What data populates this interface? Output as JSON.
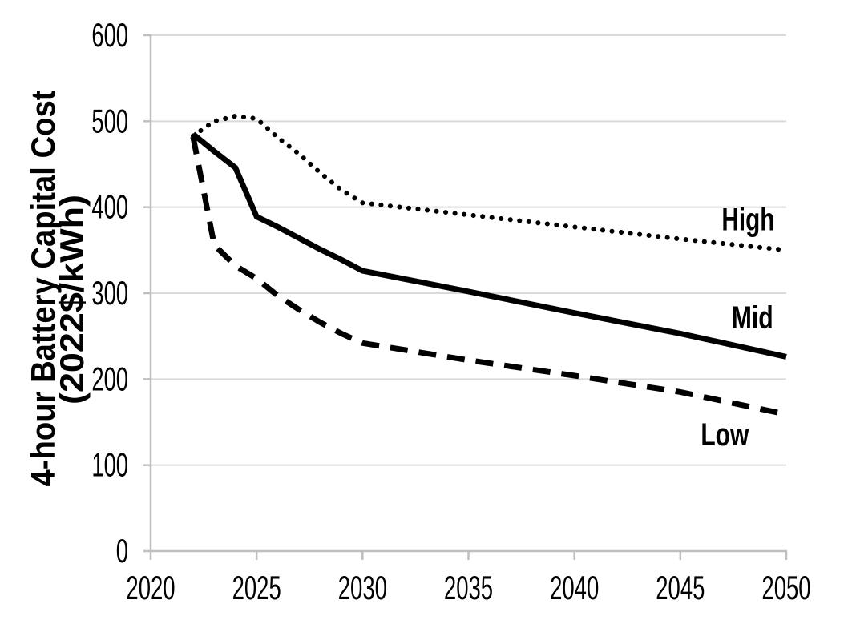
{
  "chart_data": {
    "type": "line",
    "title": "",
    "ylabel_line1": "4-hour Battery Capital Cost",
    "ylabel_line2": "(2022$/kWh)",
    "xlabel": "",
    "xlim": [
      2020,
      2050
    ],
    "ylim": [
      0,
      600
    ],
    "xticks": [
      2020,
      2025,
      2030,
      2035,
      2040,
      2045,
      2050
    ],
    "yticks": [
      0,
      100,
      200,
      300,
      400,
      500,
      600
    ],
    "grid": "horizontal",
    "legend_position": "inline-right-labels",
    "x": [
      2022,
      2023,
      2024,
      2025,
      2026,
      2027,
      2028,
      2029,
      2030,
      2035,
      2040,
      2045,
      2050
    ],
    "series": [
      {
        "name": "High",
        "style": "dotted",
        "values": [
          483,
          500,
          506,
          503,
          481,
          462,
          440,
          420,
          405,
          391,
          377,
          363,
          350
        ],
        "label_pos": {
          "year": 2048.2,
          "value": 386
        }
      },
      {
        "name": "Mid",
        "style": "solid",
        "values": [
          485,
          465,
          446,
          389,
          377,
          364,
          351,
          339,
          326,
          302,
          277,
          253,
          226
        ],
        "label_pos": {
          "year": 2048.4,
          "value": 272
        }
      },
      {
        "name": "Low",
        "style": "dashed",
        "values": [
          482,
          356,
          332,
          317,
          297,
          281,
          266,
          253,
          242,
          222,
          204,
          185,
          159
        ],
        "label_pos": {
          "year": 2047.1,
          "value": 136
        }
      }
    ],
    "colors": {
      "line": "#000000",
      "grid": "#d9d9d9",
      "axis": "#bfbfbf",
      "text": "#000000",
      "background": "#ffffff"
    }
  }
}
